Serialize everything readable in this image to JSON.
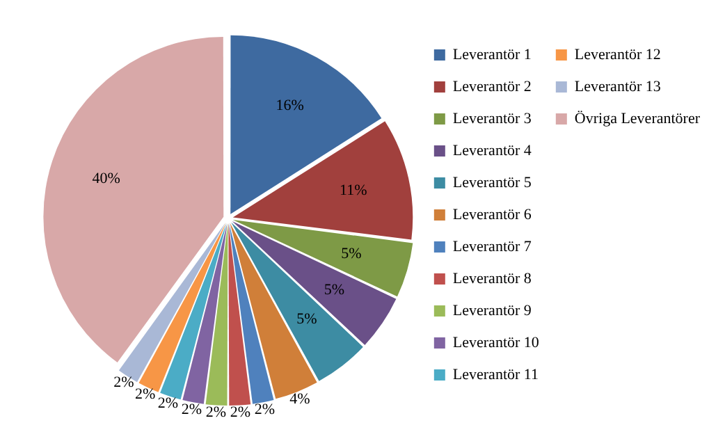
{
  "chart_data": {
    "type": "pie",
    "categories": [
      "Leverantör 1",
      "Leverantör 2",
      "Leverantör 3",
      "Leverantör 4",
      "Leverantör 5",
      "Leverantör 6",
      "Leverantör 7",
      "Leverantör 8",
      "Leverantör 9",
      "Leverantör 10",
      "Leverantör 11",
      "Leverantör 12",
      "Leverantör 13",
      "Övriga Leverantörer"
    ],
    "values": [
      16,
      11,
      5,
      5,
      5,
      4,
      2,
      2,
      2,
      2,
      2,
      2,
      2,
      40
    ],
    "value_labels": [
      "16%",
      "11%",
      "5%",
      "5%",
      "5%",
      "4%",
      "2%",
      "2%",
      "2%",
      "2%",
      "2%",
      "2%",
      "2%",
      "40%"
    ],
    "colors": [
      "#3e6aa0",
      "#a1403d",
      "#7e9a46",
      "#6a5088",
      "#3d8ca3",
      "#d07f39",
      "#4f81bd",
      "#c0504d",
      "#9bbb59",
      "#8064a2",
      "#4bacc6",
      "#f79646",
      "#a9b8d6",
      "#d8a8a8"
    ],
    "legend": "right"
  }
}
